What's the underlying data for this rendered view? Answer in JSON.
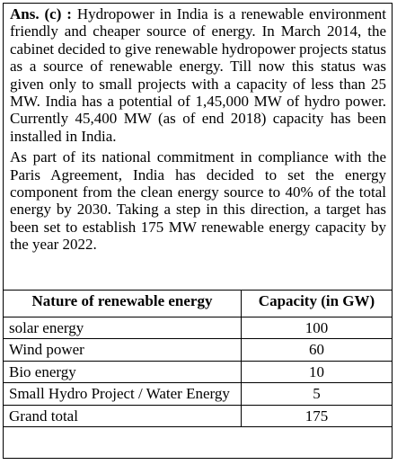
{
  "answer": {
    "label": "Ans. (c) :",
    "paragraphs": [
      "Hydropower in India is a renewable environment friendly and cheaper source of energy. In March 2014, the cabinet decided to give renewable hydropower projects status as a source of renewable energy. Till now this status was given only to small projects with a capacity of less than 25 MW. India has a potential of 1,45,000 MW of hydro power. Currently 45,400 MW (as of end 2018) capacity has been installed in India.",
      "As part of its national commitment in compliance with the Paris Agreement, India has decided to set the energy component from the clean energy source to 40% of the total energy by 2030. Taking a step in this direction, a target has been set to establish 175 MW renewable energy capacity by the year 2022."
    ]
  },
  "table": {
    "header": [
      "Nature of renewable energy",
      "Capacity (in GW)"
    ],
    "rows": [
      [
        "solar energy",
        100
      ],
      [
        "Wind power",
        60
      ],
      [
        "Bio energy",
        10
      ],
      [
        "Small Hydro Project / Water Energy",
        5
      ],
      [
        "Grand total",
        175
      ]
    ]
  }
}
